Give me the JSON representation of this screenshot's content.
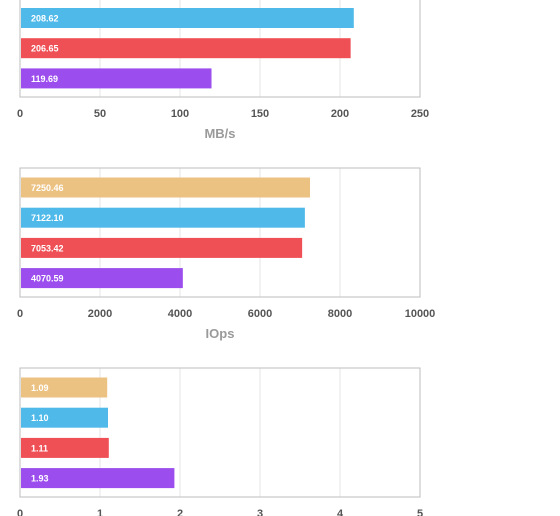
{
  "colors": {
    "orange": "#ecc283",
    "blue": "#4fb9e9",
    "red": "#ef5055",
    "purple": "#9b4ded",
    "grid": "#e6e6e6",
    "frame": "#bdbdbd"
  },
  "chart_data": [
    {
      "type": "bar",
      "orientation": "horizontal",
      "xlabel": "MB/s",
      "xlim": [
        0,
        250
      ],
      "xticks": [
        0,
        50,
        100,
        150,
        200,
        250
      ],
      "grid": true,
      "bars": [
        {
          "value": 208.62,
          "label": "208.62",
          "color": "blue"
        },
        {
          "value": 206.65,
          "label": "206.65",
          "color": "red"
        },
        {
          "value": 119.69,
          "label": "119.69",
          "color": "purple"
        }
      ]
    },
    {
      "type": "bar",
      "orientation": "horizontal",
      "xlabel": "IOps",
      "xlim": [
        0,
        10000
      ],
      "xticks": [
        0,
        2000,
        4000,
        6000,
        8000,
        10000
      ],
      "grid": true,
      "bars": [
        {
          "value": 7250.46,
          "label": "7250.46",
          "color": "orange"
        },
        {
          "value": 7122.1,
          "label": "7122.10",
          "color": "blue"
        },
        {
          "value": 7053.42,
          "label": "7053.42",
          "color": "red"
        },
        {
          "value": 4070.59,
          "label": "4070.59",
          "color": "purple"
        }
      ]
    },
    {
      "type": "bar",
      "orientation": "horizontal",
      "xlabel": "",
      "xlim": [
        0,
        5
      ],
      "xticks": [
        0,
        1,
        2,
        3,
        4,
        5
      ],
      "grid": true,
      "bars": [
        {
          "value": 1.09,
          "label": "1.09",
          "color": "orange"
        },
        {
          "value": 1.1,
          "label": "1.10",
          "color": "blue"
        },
        {
          "value": 1.11,
          "label": "1.11",
          "color": "red"
        },
        {
          "value": 1.93,
          "label": "1.93",
          "color": "purple"
        }
      ]
    }
  ]
}
